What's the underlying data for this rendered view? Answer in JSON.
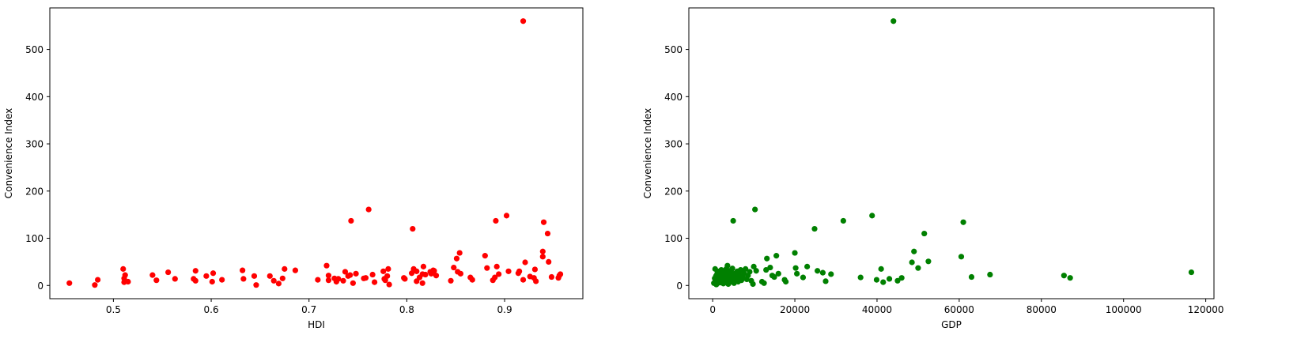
{
  "chart_data": [
    {
      "type": "scatter",
      "xlabel": "HDI",
      "ylabel": "Convenience Index",
      "xlim": [
        0.435,
        0.98
      ],
      "ylim": [
        -28,
        588
      ],
      "xticks": [
        0.5,
        0.6,
        0.7,
        0.8,
        0.9
      ],
      "xtick_labels": [
        "0.5",
        "0.6",
        "0.7",
        "0.8",
        "0.9"
      ],
      "yticks": [
        0,
        100,
        200,
        300,
        400,
        500
      ],
      "ytick_labels": [
        "0",
        "100",
        "200",
        "300",
        "400",
        "500"
      ],
      "grid": false,
      "color": "#ff0000",
      "series": [
        {
          "points": [
            [
              0.455,
              5
            ],
            [
              0.481,
              1
            ],
            [
              0.484,
              12
            ],
            [
              0.51,
              35
            ],
            [
              0.511,
              7
            ],
            [
              0.511,
              15
            ],
            [
              0.512,
              22
            ],
            [
              0.515,
              8
            ],
            [
              0.54,
              22
            ],
            [
              0.544,
              11
            ],
            [
              0.556,
              28
            ],
            [
              0.563,
              14
            ],
            [
              0.582,
              14
            ],
            [
              0.584,
              31
            ],
            [
              0.584,
              10
            ],
            [
              0.595,
              20
            ],
            [
              0.601,
              8
            ],
            [
              0.602,
              26
            ],
            [
              0.611,
              12
            ],
            [
              0.632,
              32
            ],
            [
              0.633,
              14
            ],
            [
              0.644,
              20
            ],
            [
              0.646,
              1
            ],
            [
              0.66,
              20
            ],
            [
              0.664,
              10
            ],
            [
              0.669,
              4
            ],
            [
              0.673,
              15
            ],
            [
              0.675,
              35
            ],
            [
              0.686,
              32
            ],
            [
              0.709,
              12
            ],
            [
              0.718,
              42
            ],
            [
              0.72,
              11
            ],
            [
              0.72,
              21
            ],
            [
              0.726,
              15
            ],
            [
              0.728,
              8
            ],
            [
              0.73,
              14
            ],
            [
              0.735,
              10
            ],
            [
              0.737,
              29
            ],
            [
              0.74,
              20
            ],
            [
              0.742,
              22
            ],
            [
              0.743,
              137
            ],
            [
              0.745,
              5
            ],
            [
              0.748,
              25
            ],
            [
              0.756,
              15
            ],
            [
              0.758,
              16
            ],
            [
              0.761,
              161
            ],
            [
              0.765,
              23
            ],
            [
              0.767,
              7
            ],
            [
              0.776,
              30
            ],
            [
              0.777,
              14
            ],
            [
              0.778,
              11
            ],
            [
              0.78,
              20
            ],
            [
              0.781,
              35
            ],
            [
              0.782,
              2
            ],
            [
              0.797,
              16
            ],
            [
              0.798,
              14
            ],
            [
              0.805,
              26
            ],
            [
              0.806,
              120
            ],
            [
              0.807,
              35
            ],
            [
              0.81,
              30
            ],
            [
              0.81,
              9
            ],
            [
              0.813,
              17
            ],
            [
              0.816,
              5
            ],
            [
              0.816,
              24
            ],
            [
              0.817,
              40
            ],
            [
              0.819,
              23
            ],
            [
              0.824,
              29
            ],
            [
              0.825,
              25
            ],
            [
              0.827,
              32
            ],
            [
              0.828,
              31
            ],
            [
              0.83,
              21
            ],
            [
              0.845,
              10
            ],
            [
              0.848,
              38
            ],
            [
              0.851,
              57
            ],
            [
              0.852,
              29
            ],
            [
              0.854,
              69
            ],
            [
              0.855,
              25
            ],
            [
              0.865,
              17
            ],
            [
              0.867,
              12
            ],
            [
              0.88,
              63
            ],
            [
              0.882,
              37
            ],
            [
              0.888,
              11
            ],
            [
              0.89,
              17
            ],
            [
              0.891,
              137
            ],
            [
              0.892,
              40
            ],
            [
              0.894,
              24
            ],
            [
              0.902,
              148
            ],
            [
              0.904,
              30
            ],
            [
              0.914,
              26
            ],
            [
              0.915,
              30
            ],
            [
              0.919,
              560
            ],
            [
              0.919,
              12
            ],
            [
              0.921,
              49
            ],
            [
              0.926,
              19
            ],
            [
              0.93,
              16
            ],
            [
              0.931,
              34
            ],
            [
              0.932,
              9
            ],
            [
              0.939,
              61
            ],
            [
              0.939,
              72
            ],
            [
              0.94,
              134
            ],
            [
              0.944,
              110
            ],
            [
              0.945,
              50
            ],
            [
              0.948,
              18
            ],
            [
              0.955,
              16
            ],
            [
              0.956,
              21
            ],
            [
              0.957,
              24
            ]
          ]
        }
      ]
    },
    {
      "type": "scatter",
      "xlabel": "GDP",
      "ylabel": "Convenience Index",
      "xlim": [
        -5800,
        122000
      ],
      "ylim": [
        -28,
        588
      ],
      "xticks": [
        0,
        20000,
        40000,
        60000,
        80000,
        100000,
        120000
      ],
      "xtick_labels": [
        "0",
        "20000",
        "40000",
        "60000",
        "80000",
        "100000",
        "120000"
      ],
      "yticks": [
        0,
        100,
        200,
        300,
        400,
        500
      ],
      "ytick_labels": [
        "0",
        "100",
        "200",
        "300",
        "400",
        "500"
      ],
      "grid": false,
      "color": "#008000",
      "series": [
        {
          "points": [
            [
              300,
              5
            ],
            [
              500,
              15
            ],
            [
              600,
              35
            ],
            [
              700,
              8
            ],
            [
              800,
              20
            ],
            [
              900,
              2
            ],
            [
              1000,
              12
            ],
            [
              1100,
              25
            ],
            [
              1200,
              30
            ],
            [
              1300,
              10
            ],
            [
              1500,
              18
            ],
            [
              1600,
              28
            ],
            [
              1700,
              6
            ],
            [
              1800,
              22
            ],
            [
              2000,
              14
            ],
            [
              2100,
              33
            ],
            [
              2200,
              9
            ],
            [
              2300,
              19
            ],
            [
              2400,
              26
            ],
            [
              2500,
              12
            ],
            [
              2600,
              4
            ],
            [
              2700,
              30
            ],
            [
              2800,
              16
            ],
            [
              2900,
              22
            ],
            [
              3000,
              8
            ],
            [
              3100,
              27
            ],
            [
              3200,
              13
            ],
            [
              3300,
              35
            ],
            [
              3400,
              20
            ],
            [
              3500,
              10
            ],
            [
              3600,
              42
            ],
            [
              3700,
              15
            ],
            [
              3800,
              3
            ],
            [
              3900,
              24
            ],
            [
              4000,
              31
            ],
            [
              4100,
              18
            ],
            [
              4200,
              7
            ],
            [
              4300,
              11
            ],
            [
              4400,
              21
            ],
            [
              4500,
              28
            ],
            [
              4600,
              14
            ],
            [
              4700,
              9
            ],
            [
              4800,
              36
            ],
            [
              4900,
              17
            ],
            [
              5000,
              137
            ],
            [
              5200,
              5
            ],
            [
              5400,
              25
            ],
            [
              5600,
              12
            ],
            [
              5800,
              20
            ],
            [
              6000,
              30
            ],
            [
              6200,
              8
            ],
            [
              6400,
              15
            ],
            [
              6600,
              22
            ],
            [
              6800,
              33
            ],
            [
              7000,
              11
            ],
            [
              7300,
              18
            ],
            [
              7600,
              26
            ],
            [
              8000,
              35
            ],
            [
              8300,
              13
            ],
            [
              8600,
              21
            ],
            [
              9000,
              29
            ],
            [
              9400,
              10
            ],
            [
              9800,
              3
            ],
            [
              10000,
              40
            ],
            [
              10300,
              161
            ],
            [
              10600,
              31
            ],
            [
              12000,
              8
            ],
            [
              12500,
              5
            ],
            [
              13000,
              33
            ],
            [
              13200,
              57
            ],
            [
              14000,
              38
            ],
            [
              14500,
              21
            ],
            [
              15000,
              18
            ],
            [
              15500,
              63
            ],
            [
              16000,
              25
            ],
            [
              17500,
              12
            ],
            [
              17800,
              8
            ],
            [
              20000,
              69
            ],
            [
              20200,
              37
            ],
            [
              20500,
              25
            ],
            [
              22000,
              17
            ],
            [
              23000,
              40
            ],
            [
              24800,
              120
            ],
            [
              25500,
              31
            ],
            [
              26800,
              27
            ],
            [
              27500,
              9
            ],
            [
              28800,
              24
            ],
            [
              31800,
              137
            ],
            [
              36000,
              17
            ],
            [
              38800,
              148
            ],
            [
              39900,
              12
            ],
            [
              41000,
              35
            ],
            [
              41500,
              7
            ],
            [
              43000,
              14
            ],
            [
              44000,
              560
            ],
            [
              45000,
              10
            ],
            [
              46000,
              16
            ],
            [
              48500,
              49
            ],
            [
              49000,
              72
            ],
            [
              50000,
              37
            ],
            [
              51500,
              110
            ],
            [
              52500,
              51
            ],
            [
              60500,
              61
            ],
            [
              61000,
              134
            ],
            [
              63000,
              18
            ],
            [
              67500,
              23
            ],
            [
              85500,
              21
            ],
            [
              87000,
              16
            ],
            [
              116500,
              28
            ]
          ]
        }
      ]
    }
  ]
}
